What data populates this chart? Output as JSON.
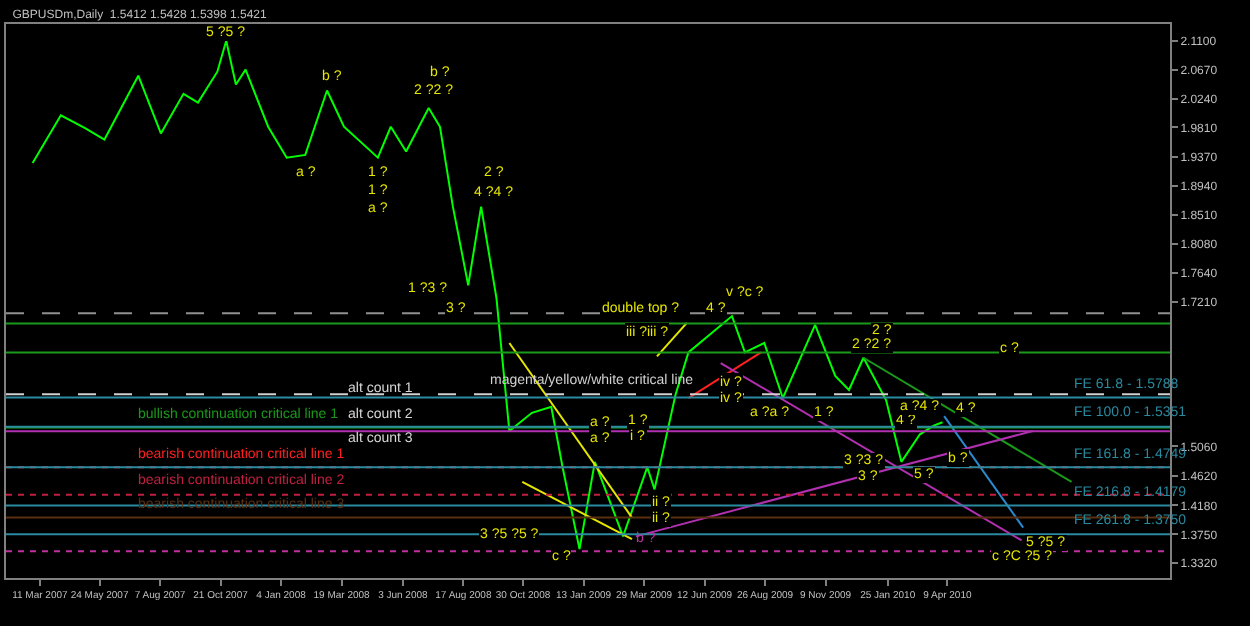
{
  "chart_data": {
    "type": "line",
    "title": "GBPUSDm,Daily  1.5412 1.5428 1.5398 1.5421",
    "xlim": [
      "2007-01-28",
      "2011-01-10"
    ],
    "xticks": [
      {
        "value": "2007-03-11",
        "label": "11 Mar 2007"
      },
      {
        "value": "2007-05-24",
        "label": "24 May 2007"
      },
      {
        "value": "2007-08-07",
        "label": "7 Aug 2007"
      },
      {
        "value": "2007-10-21",
        "label": "21 Oct 2007"
      },
      {
        "value": "2008-01-04",
        "label": "4 Jan 2008"
      },
      {
        "value": "2008-03-19",
        "label": "19 Mar 2008"
      },
      {
        "value": "2008-06-03",
        "label": "3 Jun 2008"
      },
      {
        "value": "2008-08-17",
        "label": "17 Aug 2008"
      },
      {
        "value": "2008-10-30",
        "label": "30 Oct 2008"
      },
      {
        "value": "2009-01-13",
        "label": "13 Jan 2009"
      },
      {
        "value": "2009-03-29",
        "label": "29 Mar 2009"
      },
      {
        "value": "2009-06-12",
        "label": "12 Jun 2009"
      },
      {
        "value": "2009-08-26",
        "label": "26 Aug 2009"
      },
      {
        "value": "2009-11-09",
        "label": "9 Nov 2009"
      },
      {
        "value": "2010-01-25",
        "label": "25 Jan 2010"
      },
      {
        "value": "2010-04-09",
        "label": "9 Apr 2010"
      }
    ],
    "ylim": [
      1.31,
      2.135
    ],
    "yticks": [
      {
        "value": 2.11,
        "label": "2.1100"
      },
      {
        "value": 2.067,
        "label": "2.0670"
      },
      {
        "value": 2.024,
        "label": "2.0240"
      },
      {
        "value": 1.981,
        "label": "1.9810"
      },
      {
        "value": 1.937,
        "label": "1.9370"
      },
      {
        "value": 1.894,
        "label": "1.8940"
      },
      {
        "value": 1.851,
        "label": "1.8510"
      },
      {
        "value": 1.808,
        "label": "1.8080"
      },
      {
        "value": 1.764,
        "label": "1.7640"
      },
      {
        "value": 1.721,
        "label": "1.7210"
      },
      {
        "value": 1.506,
        "label": "1.5060"
      },
      {
        "value": 1.462,
        "label": "1.4620"
      },
      {
        "value": 1.418,
        "label": "1.4180"
      },
      {
        "value": 1.375,
        "label": "1.3750"
      },
      {
        "value": 1.332,
        "label": "1.3320"
      }
    ],
    "grid": false,
    "series": [
      {
        "color": "#00ff00",
        "x": [
          "2007-03-02",
          "2007-04-06",
          "2007-05-06",
          "2007-05-30",
          "2007-07-11",
          "2007-08-08",
          "2007-09-05",
          "2007-09-23",
          "2007-10-17",
          "2007-10-28",
          "2007-11-09",
          "2007-11-21",
          "2007-12-19",
          "2008-01-11",
          "2008-02-03",
          "2008-03-01",
          "2008-03-22",
          "2008-05-03",
          "2008-05-19",
          "2008-06-07",
          "2008-07-05",
          "2008-07-19",
          "2008-08-04",
          "2008-08-23",
          "2008-09-08",
          "2008-09-27",
          "2008-10-13",
          "2008-11-10",
          "2008-12-04",
          "2008-12-18",
          "2009-01-08",
          "2009-01-27",
          "2009-03-03",
          "2009-04-02",
          "2009-04-11",
          "2009-05-07",
          "2009-05-23",
          "2009-07-16",
          "2009-08-01",
          "2009-08-25",
          "2009-09-17",
          "2009-10-27",
          "2009-11-21",
          "2009-12-08",
          "2009-12-26",
          "2010-01-23",
          "2010-02-11",
          "2010-03-06",
          "2010-03-23",
          "2010-04-03"
        ],
        "values": [
          1.928,
          1.999,
          1.98,
          1.963,
          2.058,
          1.972,
          2.031,
          2.018,
          2.064,
          2.11,
          2.045,
          2.067,
          1.982,
          1.936,
          1.94,
          2.036,
          1.982,
          1.936,
          1.982,
          1.945,
          2.01,
          1.982,
          1.863,
          1.746,
          1.863,
          1.727,
          1.529,
          1.556,
          1.565,
          1.475,
          1.353,
          1.483,
          1.372,
          1.475,
          1.442,
          1.583,
          1.646,
          1.7,
          1.646,
          1.66,
          1.578,
          1.687,
          1.611,
          1.59,
          1.638,
          1.575,
          1.483,
          1.524,
          1.537,
          1.542
        ]
      },
      {
        "color": "#e6e600",
        "x": [
          "2008-10-13",
          "2009-03-14"
        ],
        "values": [
          1.66,
          1.4
        ]
      },
      {
        "color": "#e6e600",
        "x": [
          "2008-10-29",
          "2009-03-14"
        ],
        "values": [
          1.453,
          1.368
        ]
      },
      {
        "color": "#e6e600",
        "x": [
          "2009-04-14",
          "2009-05-21"
        ],
        "values": [
          1.64,
          1.69
        ]
      },
      {
        "color": "#ff2020",
        "x": [
          "2009-05-23",
          "2009-08-21"
        ],
        "values": [
          1.578,
          1.646
        ]
      },
      {
        "color": "#1a9a1a",
        "x": [
          "2009-12-26",
          "2010-09-10"
        ],
        "values": [
          1.638,
          1.453
        ]
      },
      {
        "color": "#2a8ad0",
        "x": [
          "2010-04-05",
          "2010-07-12"
        ],
        "values": [
          1.551,
          1.385
        ]
      },
      {
        "color": "#b030b0",
        "x": [
          "2009-07-02",
          "2010-07-10"
        ],
        "values": [
          1.63,
          1.366
        ]
      },
      {
        "color": "#b030b0",
        "x": [
          "2009-03-19",
          "2010-07-24"
        ],
        "values": [
          1.372,
          1.529
        ]
      }
    ],
    "ref_lines": [
      {
        "axis": "y",
        "value": 1.7041,
        "color": "#909090",
        "line_style": "dashed"
      },
      {
        "axis": "y",
        "value": 1.6889,
        "color": "#1a9a1a",
        "line_style": "solid"
      },
      {
        "axis": "y",
        "value": 1.6457,
        "color": "#1a9a1a",
        "line_style": "solid"
      },
      {
        "axis": "y",
        "value": 1.5838,
        "color": "#d0d0d0",
        "line_style": "dashed"
      },
      {
        "axis": "y",
        "value": 1.5343,
        "color": "#1a9a1a",
        "line_style": "solid"
      },
      {
        "axis": "y",
        "value": 1.5286,
        "color": "#b030b0",
        "line_style": "solid"
      },
      {
        "axis": "y",
        "value": 1.475,
        "color": "#ff2020",
        "line_style": "dotted"
      },
      {
        "axis": "y",
        "value": 1.4339,
        "color": "#c02040",
        "line_style": "dotted"
      },
      {
        "axis": "y",
        "value": 1.4,
        "color": "#5a3010",
        "line_style": "solid"
      },
      {
        "axis": "y",
        "value": 1.35,
        "color": "#c030a0",
        "line_style": "dotted"
      },
      {
        "axis": "y",
        "value": 1.5788,
        "color": "#2a8aa0",
        "line_style": "solid"
      },
      {
        "axis": "y",
        "value": 1.5351,
        "color": "#2a8aa0",
        "line_style": "solid"
      },
      {
        "axis": "y",
        "value": 1.4749,
        "color": "#2a8aa0",
        "line_style": "solid"
      },
      {
        "axis": "y",
        "value": 1.4179,
        "color": "#2a8aa0",
        "line_style": "solid"
      },
      {
        "axis": "y",
        "value": 1.375,
        "color": "#2a8aa0",
        "line_style": "solid"
      }
    ],
    "annotations": [
      "alt count 1",
      "alt count 2",
      "alt count 3",
      {
        "text": "double top ?",
        "x": "2009-03-25",
        "y": 1.711
      },
      {
        "text": "magenta/yellow/white critical line",
        "x": "2008-09-15",
        "y": 1.5838
      },
      {
        "text": "bullish continuation critical line 1",
        "x": "2007-07-06",
        "y": 1.5343
      },
      {
        "text": "bearish continuation critical line 1",
        "x": "2007-07-06",
        "y": 1.475
      },
      {
        "text": "bearish continuation critical line 2",
        "x": "2007-07-06",
        "y": 1.4339
      },
      {
        "text": "bearish continuation critical line 3",
        "x": "2007-07-06",
        "y": 1.4
      },
      {
        "text": "FE 61.8 - 1.5788",
        "x": "2010-09-09",
        "y": 1.5788
      },
      {
        "text": "FE 100.0 - 1.5351",
        "x": "2010-09-09",
        "y": 1.5351
      },
      {
        "text": "FE 161.8 - 1.4749",
        "x": "2010-09-09",
        "y": 1.4749
      },
      {
        "text": "FE 216.8 - 1.4179",
        "x": "2010-09-09",
        "y": 1.4179
      },
      {
        "text": "FE 261.8 - 1.3750",
        "x": "2010-09-09",
        "y": 1.375
      },
      {
        "text": "5 ?5 ?",
        "x": "2007-10-28",
        "y": 2.121
      },
      {
        "text": "a ?",
        "x": "2008-02-03",
        "y": 1.912
      },
      {
        "text": "b ?",
        "x": "2008-03-06",
        "y": 2.058
      },
      {
        "text": "1 ?",
        "x": "2008-05-03",
        "y": 1.912
      },
      {
        "text": "1 ?",
        "x": "2008-05-03",
        "y": 1.885
      },
      {
        "text": "a ?",
        "x": "2008-05-03",
        "y": 1.86
      },
      {
        "text": "b ?",
        "x": "2008-07-19",
        "y": 2.064
      },
      {
        "text": "2 ?2 ?",
        "x": "2008-07-12",
        "y": 2.034
      },
      {
        "text": "2 ?",
        "x": "2008-09-25",
        "y": 1.912
      },
      {
        "text": "4 ?4 ?",
        "x": "2008-09-25",
        "y": 1.882
      },
      {
        "text": "1 ?3 ?",
        "x": "2008-07-05",
        "y": 1.74
      },
      {
        "text": "3 ?",
        "x": "2008-08-09",
        "y": 1.71
      },
      {
        "text": "3 ?5 ?5 ?",
        "x": "2008-10-13",
        "y": 1.374
      },
      {
        "text": "c ?",
        "x": "2008-12-16",
        "y": 1.342
      },
      {
        "text": "a ?",
        "x": "2009-02-03",
        "y": 1.54
      },
      {
        "text": "a ?",
        "x": "2009-02-03",
        "y": 1.518
      },
      {
        "text": "b ?",
        "x": "2009-03-14",
        "y": 1.35
      },
      {
        "text": "1 ?",
        "x": "2009-03-21",
        "y": 1.545
      },
      {
        "text": "i ?",
        "x": "2009-03-21",
        "y": 1.521
      },
      {
        "text": "ii ?",
        "x": "2009-04-18",
        "y": 1.423
      },
      {
        "text": "ii ?",
        "x": "2009-04-18",
        "y": 1.399
      },
      {
        "text": "iii ?iii ?",
        "x": "2009-04-01",
        "y": 1.676
      },
      {
        "text": "iv ?",
        "x": "2009-07-14",
        "y": 1.603
      },
      {
        "text": "iv ?",
        "x": "2009-07-14",
        "y": 1.578
      },
      {
        "text": "4 ?",
        "x": "2009-06-27",
        "y": 1.711
      },
      {
        "text": "v ?c ?",
        "x": "2009-08-01",
        "y": 1.733
      },
      {
        "text": "a ?a ?",
        "x": "2009-09-01",
        "y": 1.556
      },
      {
        "text": "1 ?",
        "x": "2009-11-07",
        "y": 1.556
      },
      {
        "text": "2 ?",
        "x": "2010-01-19",
        "y": 1.679
      },
      {
        "text": "2 ?2 ?",
        "x": "2010-01-05",
        "y": 1.657
      },
      {
        "text": "3 ?3 ?",
        "x": "2009-12-26",
        "y": 1.483
      },
      {
        "text": "3 ?",
        "x": "2009-12-31",
        "y": 1.461
      },
      {
        "text": "4 ?",
        "x": "2010-02-16",
        "y": 1.543
      },
      {
        "text": "5 ?",
        "x": "2010-03-11",
        "y": 1.464
      },
      {
        "text": "a ?4 ?",
        "x": "2010-03-06",
        "y": 1.565
      },
      {
        "text": "4 ?",
        "x": "2010-05-01",
        "y": 1.562
      },
      {
        "text": "b ?",
        "x": "2010-04-22",
        "y": 1.488
      },
      {
        "text": "c ?",
        "x": "2010-06-24",
        "y": 1.651
      },
      {
        "text": "5 ?5 ?",
        "x": "2010-08-10",
        "y": 1.361
      },
      {
        "text": "c ?C ?5 ?",
        "x": "2010-07-10",
        "y": 1.342
      }
    ]
  }
}
